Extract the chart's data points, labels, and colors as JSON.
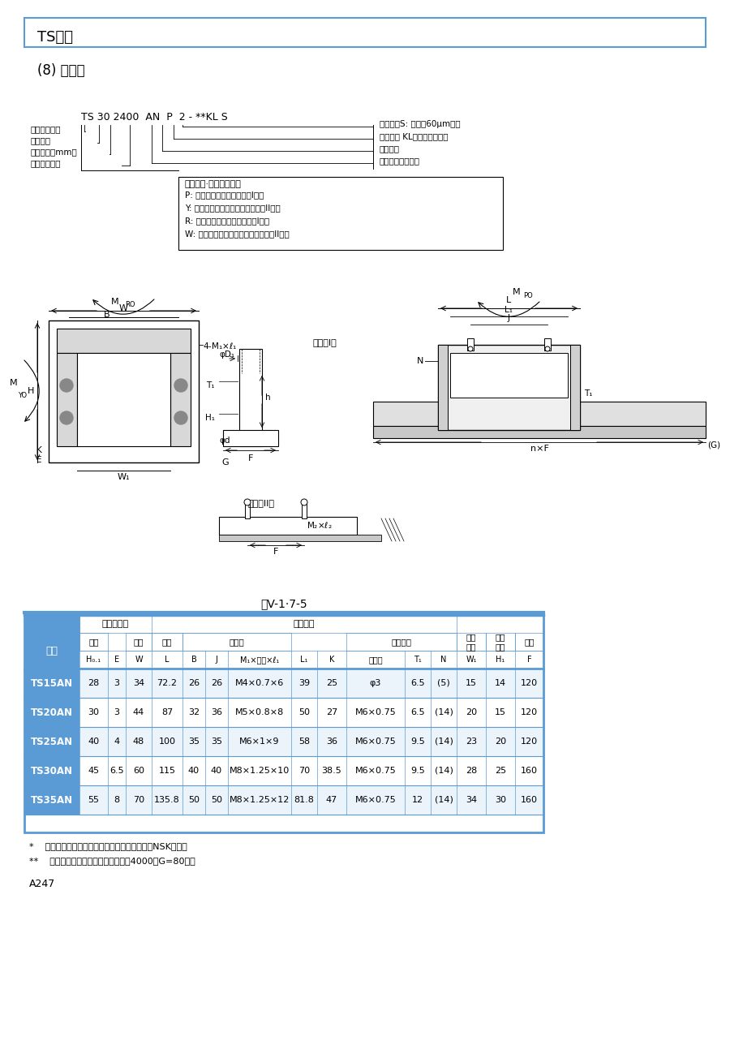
{
  "title_box": "TS系列",
  "subtitle": "(8) 尺寸表",
  "table_title": "表V-1·7-5",
  "model_code": "TS 30 2400  AN  P  2 - **KL S",
  "annot_left": [
    "直线滚珠导轨",
    "尺寸编号",
    "轨道长度（mm）",
    "滑块形状符号"
  ],
  "annot_right": [
    "间隙符号S: 间隙量60μm以下",
    "精度等级 KL：微运用普通级",
    "设计编号",
    "单根轨道的滑块数"
  ],
  "surface_title": "表面处理·轨道形状符号",
  "surface_notes": [
    "P: 无表面处理、轨道螺孔（I型）",
    "Y: 无表面处理、轨道钻安装槽孔（II型）",
    "R: 氟化低温镀铬、轨道螺孔（I型）",
    "W: 氟化低温镀铬、轨道钻安装槽孔（II型）"
  ],
  "rows": [
    [
      "TS15AN",
      "28",
      "3",
      "34",
      "72.2",
      "26",
      "26",
      "M4×0.7×6",
      "39",
      "25",
      "φ3",
      "6.5",
      "(5)",
      "15",
      "14",
      "120"
    ],
    [
      "TS20AN",
      "30",
      "3",
      "44",
      "87",
      "32",
      "36",
      "M5×0.8×8",
      "50",
      "27",
      "M6×0.75",
      "6.5",
      "(14)",
      "20",
      "15",
      "120"
    ],
    [
      "TS25AN",
      "40",
      "4",
      "48",
      "100",
      "35",
      "35",
      "M6×1×9",
      "58",
      "36",
      "M6×0.75",
      "9.5",
      "(14)",
      "23",
      "20",
      "120"
    ],
    [
      "TS30AN",
      "45",
      "6.5",
      "60",
      "115",
      "40",
      "40",
      "M8×1.25×10",
      "70",
      "38.5",
      "M6×0.75",
      "9.5",
      "(14)",
      "28",
      "25",
      "160"
    ],
    [
      "TS35AN",
      "55",
      "8",
      "70",
      "135.8",
      "50",
      "50",
      "M8×1.25×12",
      "81.8",
      "47",
      "M6×0.75",
      "12",
      "(14)",
      "34",
      "30",
      "160"
    ]
  ],
  "note1": "*    超过最大长度时，可用连接轨道来对应，请与NSK协商。",
  "note2": "**    氟化低温镀铬、产品的最大长度为4000（G=80）。",
  "page_num": "A247",
  "blue": "#5B9BD5",
  "light_blue_bg": "#D6E8F7",
  "alt_row": "#EBF3FB",
  "white": "#FFFFFF"
}
